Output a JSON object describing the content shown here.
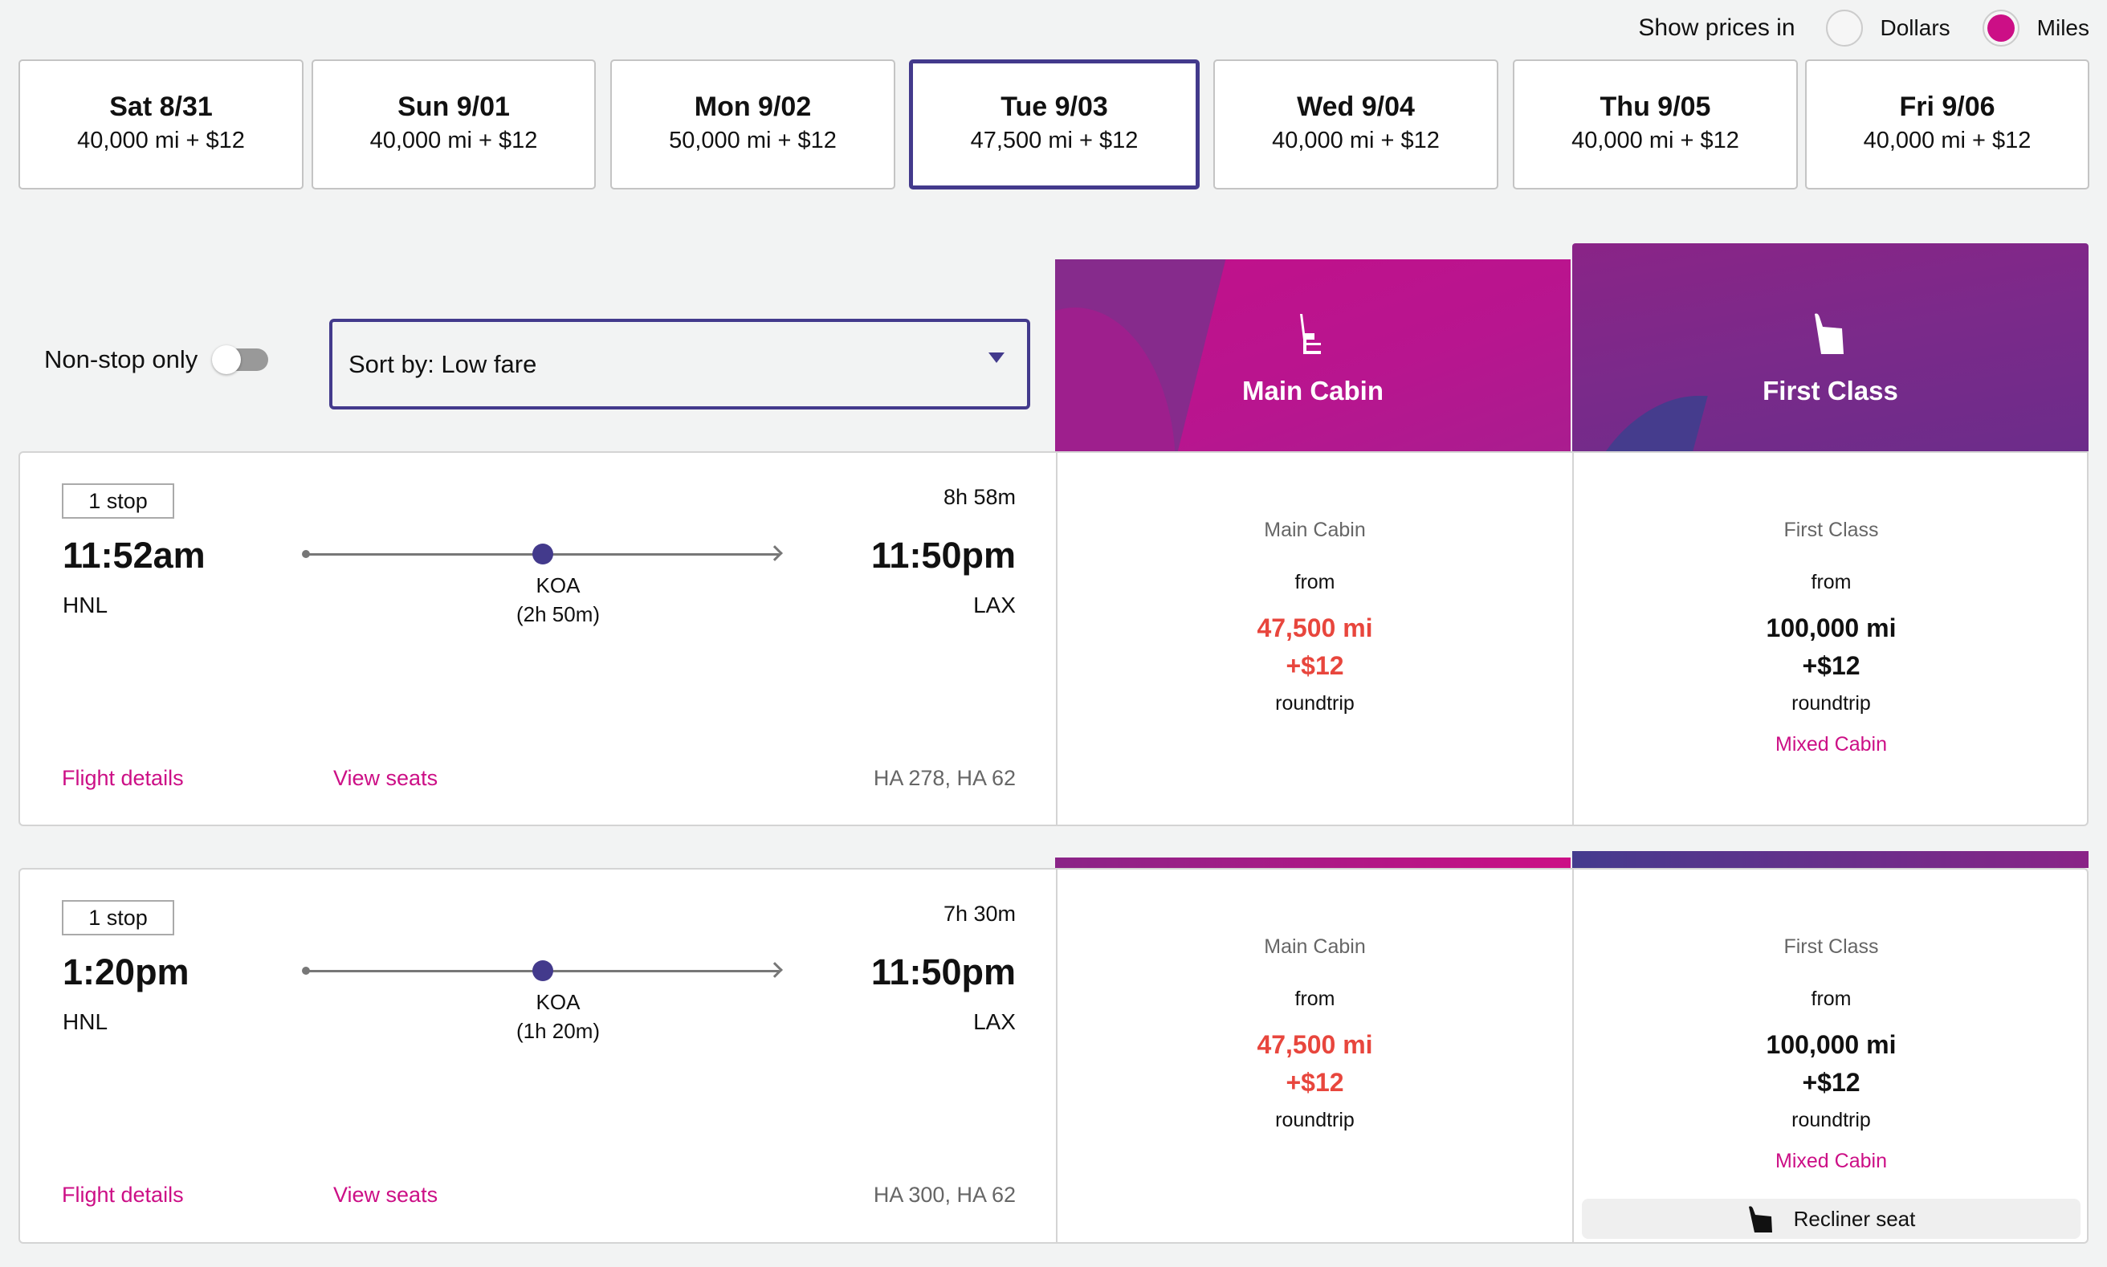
{
  "price_toggle": {
    "label": "Show prices in",
    "options": [
      {
        "label": "Dollars",
        "selected": false
      },
      {
        "label": "Miles",
        "selected": true
      }
    ]
  },
  "date_tabs": [
    {
      "day": "Sat 8/31",
      "price": "40,000 mi + $12",
      "selected": false
    },
    {
      "day": "Sun 9/01",
      "price": "40,000 mi + $12",
      "selected": false
    },
    {
      "day": "Mon 9/02",
      "price": "50,000 mi + $12",
      "selected": false
    },
    {
      "day": "Tue 9/03",
      "price": "47,500 mi + $12",
      "selected": true
    },
    {
      "day": "Wed 9/04",
      "price": "40,000 mi + $12",
      "selected": false
    },
    {
      "day": "Thu 9/05",
      "price": "40,000 mi + $12",
      "selected": false
    },
    {
      "day": "Fri 9/06",
      "price": "40,000 mi + $12",
      "selected": false
    }
  ],
  "filters": {
    "nonstop_label": "Non-stop only",
    "nonstop_on": false,
    "sort_value": "Sort by: Low fare"
  },
  "cabins": {
    "main": {
      "title": "Main Cabin",
      "icon": "seat-icon"
    },
    "first": {
      "title": "First Class",
      "icon": "recliner-seat-icon"
    }
  },
  "colors": {
    "accent": "#cc0f86",
    "selected_border": "#433a8c",
    "price_highlight": "#e8463d"
  },
  "flights": [
    {
      "stops": "1 stop",
      "duration": "8h 58m",
      "depart_time": "11:52am",
      "arrive_time": "11:50pm",
      "origin": "HNL",
      "destination": "LAX",
      "via": "KOA",
      "layover": "(2h 50m)",
      "details_link": "Flight details",
      "seats_link": "View seats",
      "flight_numbers": "HA 278, HA 62",
      "main_fare": {
        "cabin": "Main Cabin",
        "from": "from",
        "miles": "47,500 mi",
        "fee": "+$12",
        "trip": "roundtrip"
      },
      "first_fare": {
        "cabin": "First Class",
        "from": "from",
        "miles": "100,000 mi",
        "fee": "+$12",
        "trip": "roundtrip",
        "note": "Mixed Cabin"
      }
    },
    {
      "stops": "1 stop",
      "duration": "7h 30m",
      "depart_time": "1:20pm",
      "arrive_time": "11:50pm",
      "origin": "HNL",
      "destination": "LAX",
      "via": "KOA",
      "layover": "(1h 20m)",
      "details_link": "Flight details",
      "seats_link": "View seats",
      "flight_numbers": "HA 300, HA 62",
      "main_fare": {
        "cabin": "Main Cabin",
        "from": "from",
        "miles": "47,500 mi",
        "fee": "+$12",
        "trip": "roundtrip"
      },
      "first_fare": {
        "cabin": "First Class",
        "from": "from",
        "miles": "100,000 mi",
        "fee": "+$12",
        "trip": "roundtrip",
        "note": "Mixed Cabin",
        "seat_type": "Recliner seat"
      }
    }
  ]
}
